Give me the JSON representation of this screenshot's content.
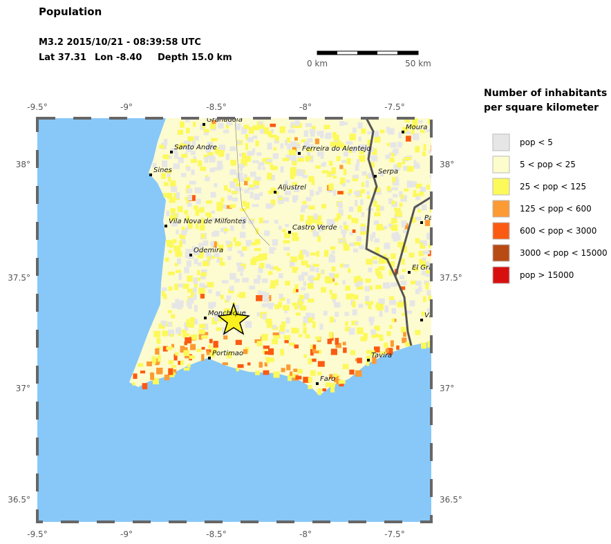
{
  "header": {
    "title": "Population",
    "event": "M3.2  2015/10/21 - 08:39:58 UTC",
    "lat": "Lat 37.31",
    "lon": "Lon  -8.40",
    "depth": "Depth  15.0 km"
  },
  "scale_bar": {
    "start": "0 km",
    "end": "50 km"
  },
  "legend": {
    "title": [
      "Number of inhabitants",
      "per square kilometer"
    ],
    "items": [
      {
        "label": "pop < 5",
        "color": "#e6e6e6"
      },
      {
        "label": "5 < pop < 25",
        "color": "#fdfccc"
      },
      {
        "label": "25 < pop < 125",
        "color": "#fcf95a"
      },
      {
        "label": "125 < pop < 600",
        "color": "#fc9a33"
      },
      {
        "label": "600 < pop < 3000",
        "color": "#fb5a12"
      },
      {
        "label": "3000 < pop < 15000",
        "color": "#b84a14"
      },
      {
        "label": "pop > 15000",
        "color": "#d80f0f"
      }
    ]
  },
  "axes": {
    "top": [
      "-9.5°",
      "-9°",
      "-8.5°",
      "-8°",
      "-7.5°"
    ],
    "bottom": [
      "-9.5°",
      "-9°",
      "-8.5°",
      "-8°",
      "-7.5°"
    ],
    "left": [
      "38°",
      "37.5°",
      "37°",
      "36.5°"
    ],
    "right": [
      "38°",
      "37.5°",
      "37°",
      "36.5°"
    ]
  },
  "places": [
    "Granadola",
    "Santo Andre",
    "Sines",
    "Ferreira do Alentejo",
    "Moura",
    "Serpa",
    "Aljustrel",
    "Vila Nova de Milfontes",
    "Castro Verde",
    "Odemira",
    "El Gra",
    "Pa",
    "Vi",
    "Monchique",
    "Portimao",
    "Tavira",
    "Faro"
  ]
}
